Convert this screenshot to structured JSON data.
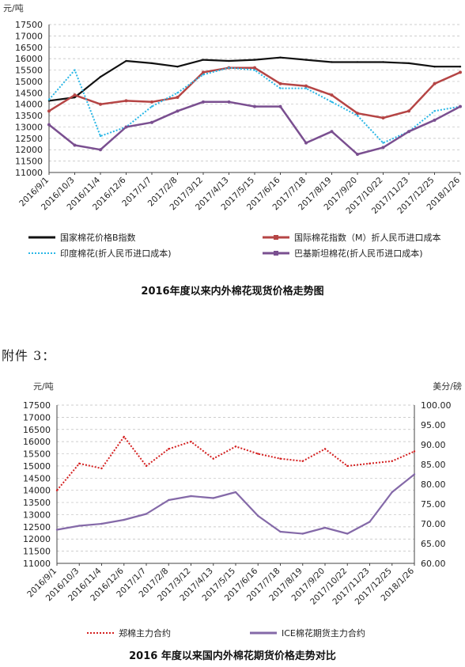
{
  "attachment_label": "附件 3：",
  "chart_data": [
    {
      "type": "line",
      "title": "2016年度以来内外棉花现货价格走势图",
      "ylabel": "元/吨",
      "ylim": [
        11000,
        17500
      ],
      "yticks": [
        11000,
        11500,
        12000,
        12500,
        13000,
        13500,
        14000,
        14500,
        15000,
        15500,
        16000,
        16500,
        17000,
        17500
      ],
      "categories": [
        "2016/9/1",
        "2016/10/3",
        "2016/11/4",
        "2016/12/6",
        "2017/1/7",
        "2017/2/8",
        "2017/3/12",
        "2017/4/13",
        "2017/5/15",
        "2017/6/16",
        "2017/7/18",
        "2017/8/19",
        "2017/9/20",
        "2017/10/22",
        "2017/11/23",
        "2017/12/25",
        "2018/1/26"
      ],
      "grid": "horizontal dashed",
      "legend_position": "bottom",
      "series": [
        {
          "name": "国家棉花价格B指数",
          "color": "#111111",
          "style": "solid",
          "values": [
            14150,
            14300,
            15200,
            15900,
            15800,
            15650,
            15950,
            15900,
            15950,
            16050,
            15950,
            15850,
            15850,
            15850,
            15800,
            15650,
            15650
          ]
        },
        {
          "name": "国际棉花指数（M）折人民币进口成本",
          "color": "#b54545",
          "style": "marker",
          "values": [
            13700,
            14400,
            14000,
            14150,
            14100,
            14300,
            15400,
            15600,
            15600,
            14900,
            14800,
            14400,
            13600,
            13400,
            13700,
            14900,
            15400
          ]
        },
        {
          "name": "印度棉花(折人民币进口成本)",
          "color": "#2ab7e6",
          "style": "dotted",
          "values": [
            14200,
            15500,
            12600,
            13000,
            13900,
            14500,
            15300,
            15600,
            15500,
            14700,
            14700,
            14100,
            13500,
            12300,
            12800,
            13700,
            13900
          ]
        },
        {
          "name": "巴基斯坦棉花(折人民币进口成本)",
          "color": "#7a4f90",
          "style": "marker",
          "values": [
            13100,
            12200,
            12000,
            13000,
            13200,
            13700,
            14100,
            14100,
            13900,
            13900,
            12300,
            12800,
            11800,
            12100,
            12800,
            13300,
            13900
          ]
        }
      ]
    },
    {
      "type": "line",
      "title": "2016 年度以来国内外棉花期货价格走势对比",
      "ylabel": "元/吨",
      "y2label": "美分/磅",
      "ylim": [
        11000,
        17500
      ],
      "yticks": [
        11000,
        11500,
        12000,
        12500,
        13000,
        13500,
        14000,
        14500,
        15000,
        15500,
        16000,
        16500,
        17000,
        17500
      ],
      "y2lim": [
        60,
        100
      ],
      "y2ticks": [
        "60.00",
        "65.00",
        "70.00",
        "75.00",
        "80.00",
        "85.00",
        "90.00",
        "95.00",
        "100.00"
      ],
      "categories": [
        "2016/9/1",
        "2016/10/3",
        "2016/11/4",
        "2016/12/6",
        "2017/1/7",
        "2017/2/8",
        "2017/3/12",
        "2017/4/13",
        "2017/5/15",
        "2017/6/16",
        "2017/7/18",
        "2017/8/19",
        "2017/9/20",
        "2017/10/22",
        "2017/11/23",
        "2017/12/25",
        "2018/1/26"
      ],
      "grid": "horizontal dashed",
      "legend_position": "bottom",
      "series": [
        {
          "name": "郑棉主力合约",
          "axis": "left",
          "color": "#d42020",
          "style": "dotted",
          "values": [
            14000,
            15100,
            14900,
            16200,
            15000,
            15700,
            16000,
            15300,
            15800,
            15500,
            15300,
            15200,
            15700,
            15000,
            15100,
            15200,
            15600
          ]
        },
        {
          "name": "ICE棉花期货主力合约",
          "axis": "right",
          "color": "#8469a8",
          "style": "solid",
          "values": [
            68.5,
            69.5,
            70.0,
            71.0,
            72.5,
            76.0,
            77.0,
            76.5,
            78.0,
            72.0,
            68.0,
            67.5,
            69.0,
            67.5,
            70.5,
            78.0,
            82.5
          ]
        }
      ]
    }
  ]
}
